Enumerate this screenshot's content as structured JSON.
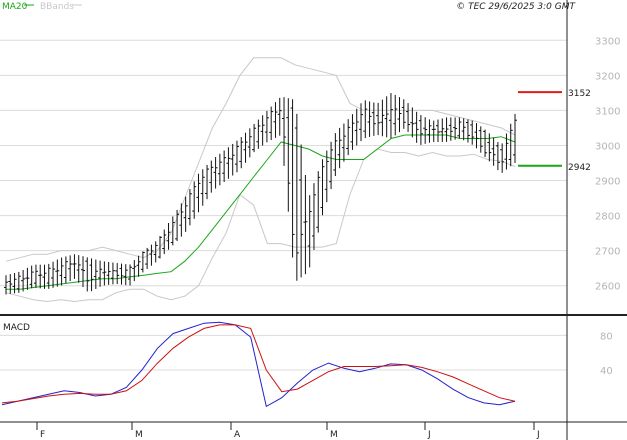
{
  "header": {
    "legend": [
      {
        "label": "MA20",
        "color": "#19a619"
      },
      {
        "label": "BBands",
        "color": "#c8c8c8"
      }
    ],
    "copyright": "© TEC 29/6/2025 3:0 GMT"
  },
  "chart_data": [
    {
      "type": "candlestick",
      "title": "",
      "ylim": [
        2525,
        3375
      ],
      "y_ticks": [
        "2600",
        "2700",
        "2800",
        "2900",
        "3000",
        "3100",
        "3200",
        "3300"
      ],
      "x_tick_labels": [
        "F",
        "M",
        "A",
        "M",
        "J",
        "J"
      ],
      "grid": true,
      "series": [
        {
          "name": "MA20",
          "color": "#19a619",
          "values": [
            2590,
            2590,
            2595,
            2600,
            2605,
            2610,
            2615,
            2620,
            2620,
            2625,
            2630,
            2635,
            2640,
            2670,
            2710,
            2760,
            2810,
            2860,
            2910,
            2960,
            3010,
            3000,
            2990,
            2970,
            2960,
            2960,
            2960,
            2990,
            3020,
            3030,
            3030,
            3030,
            3030,
            3020,
            3020,
            3020,
            3025,
            3010
          ]
        },
        {
          "name": "BB upper",
          "color": "#c8c8c8",
          "values": [
            2670,
            2680,
            2690,
            2690,
            2700,
            2700,
            2700,
            2710,
            2700,
            2690,
            2680,
            2700,
            2750,
            2850,
            2950,
            3050,
            3120,
            3200,
            3250,
            3250,
            3250,
            3230,
            3220,
            3210,
            3200,
            3120,
            3100,
            3100,
            3100,
            3100,
            3100,
            3100,
            3090,
            3080,
            3070,
            3060,
            3050,
            3030
          ]
        },
        {
          "name": "BB lower",
          "color": "#c8c8c8",
          "values": [
            2580,
            2570,
            2560,
            2555,
            2560,
            2555,
            2560,
            2560,
            2580,
            2590,
            2590,
            2570,
            2560,
            2570,
            2600,
            2680,
            2750,
            2860,
            2830,
            2720,
            2720,
            2710,
            2710,
            2710,
            2720,
            2860,
            2960,
            2990,
            2980,
            2980,
            2970,
            2980,
            2970,
            2970,
            2975,
            2960,
            2955,
            2940
          ]
        },
        {
          "name": "price",
          "values": [
            2600,
            2610,
            2620,
            2610,
            2630,
            2640,
            2650,
            2660,
            2640,
            2660,
            2680,
            2700,
            2760,
            2830,
            2900,
            2950,
            3000,
            3030,
            3060,
            3100,
            3120,
            2650,
            2820,
            2980,
            3020,
            3050,
            3080,
            3100,
            3100,
            3090,
            3060,
            3040,
            3040,
            3060,
            3050,
            3030,
            2960,
            3050
          ]
        }
      ],
      "ohlc": [
        {
          "o": 2595,
          "h": 2630,
          "l": 2575,
          "c": 2610
        },
        {
          "o": 2605,
          "h": 2640,
          "l": 2580,
          "c": 2620
        },
        {
          "o": 2615,
          "h": 2660,
          "l": 2595,
          "c": 2635
        },
        {
          "o": 2620,
          "h": 2660,
          "l": 2590,
          "c": 2640
        },
        {
          "o": 2630,
          "h": 2680,
          "l": 2600,
          "c": 2655
        },
        {
          "o": 2650,
          "h": 2690,
          "l": 2620,
          "c": 2670
        },
        {
          "o": 2660,
          "h": 2680,
          "l": 2580,
          "c": 2615
        },
        {
          "o": 2620,
          "h": 2670,
          "l": 2600,
          "c": 2650
        },
        {
          "o": 2640,
          "h": 2665,
          "l": 2605,
          "c": 2630
        },
        {
          "o": 2630,
          "h": 2660,
          "l": 2600,
          "c": 2645
        },
        {
          "o": 2660,
          "h": 2700,
          "l": 2640,
          "c": 2690
        },
        {
          "o": 2690,
          "h": 2730,
          "l": 2670,
          "c": 2720
        },
        {
          "o": 2720,
          "h": 2790,
          "l": 2710,
          "c": 2770
        },
        {
          "o": 2780,
          "h": 2850,
          "l": 2750,
          "c": 2830
        },
        {
          "o": 2840,
          "h": 2920,
          "l": 2810,
          "c": 2900
        },
        {
          "o": 2900,
          "h": 2960,
          "l": 2870,
          "c": 2940
        },
        {
          "o": 2940,
          "h": 2990,
          "l": 2900,
          "c": 2960
        },
        {
          "o": 2960,
          "h": 3020,
          "l": 2930,
          "c": 3000
        },
        {
          "o": 3000,
          "h": 3060,
          "l": 2980,
          "c": 3040
        },
        {
          "o": 3040,
          "h": 3100,
          "l": 3010,
          "c": 3080
        },
        {
          "o": 3080,
          "h": 3140,
          "l": 3030,
          "c": 3110
        },
        {
          "o": 3100,
          "h": 3130,
          "l": 2610,
          "c": 2680
        },
        {
          "o": 2690,
          "h": 2850,
          "l": 2640,
          "c": 2810
        },
        {
          "o": 2820,
          "h": 2960,
          "l": 2800,
          "c": 2940
        },
        {
          "o": 2950,
          "h": 3040,
          "l": 2920,
          "c": 3010
        },
        {
          "o": 3010,
          "h": 3080,
          "l": 2980,
          "c": 3050
        },
        {
          "o": 3050,
          "h": 3130,
          "l": 3020,
          "c": 3100
        },
        {
          "o": 3090,
          "h": 3120,
          "l": 3030,
          "c": 3060
        },
        {
          "o": 3060,
          "h": 3150,
          "l": 3020,
          "c": 3110
        },
        {
          "o": 3100,
          "h": 3130,
          "l": 3050,
          "c": 3070
        },
        {
          "o": 3060,
          "h": 3090,
          "l": 3000,
          "c": 3040
        },
        {
          "o": 3040,
          "h": 3070,
          "l": 3010,
          "c": 3050
        },
        {
          "o": 3050,
          "h": 3080,
          "l": 3010,
          "c": 3040
        },
        {
          "o": 3040,
          "h": 3080,
          "l": 3020,
          "c": 3060
        },
        {
          "o": 3060,
          "h": 3070,
          "l": 3000,
          "c": 3020
        },
        {
          "o": 3020,
          "h": 3040,
          "l": 2960,
          "c": 2980
        },
        {
          "o": 2980,
          "h": 3000,
          "l": 2920,
          "c": 2950
        },
        {
          "o": 2960,
          "h": 3090,
          "l": 2950,
          "c": 3080
        }
      ],
      "reference_lines": [
        {
          "value": 3152,
          "label": "3152",
          "color": "#e01919"
        },
        {
          "value": 2942,
          "label": "2942",
          "color": "#19a619"
        }
      ]
    },
    {
      "type": "line",
      "title": "MACD",
      "ylim": [
        -20,
        100
      ],
      "y_ticks": [
        "40",
        "80"
      ],
      "x_tick_labels": [
        "F",
        "M",
        "A",
        "M",
        "J",
        "J"
      ],
      "grid": true,
      "series": [
        {
          "name": "MACD",
          "color": "#2222cc",
          "values": [
            0,
            4,
            8,
            12,
            16,
            14,
            10,
            12,
            20,
            40,
            65,
            82,
            88,
            94,
            95,
            92,
            78,
            -2,
            8,
            25,
            40,
            48,
            42,
            38,
            42,
            47,
            46,
            40,
            30,
            18,
            8,
            2,
            0,
            4
          ]
        },
        {
          "name": "Signal",
          "color": "#cc1111",
          "values": [
            2,
            4,
            7,
            10,
            12,
            13,
            12,
            12,
            16,
            28,
            48,
            65,
            78,
            88,
            92,
            92,
            88,
            40,
            15,
            18,
            28,
            38,
            44,
            44,
            44,
            45,
            46,
            43,
            38,
            32,
            24,
            16,
            8,
            4
          ]
        }
      ]
    }
  ]
}
